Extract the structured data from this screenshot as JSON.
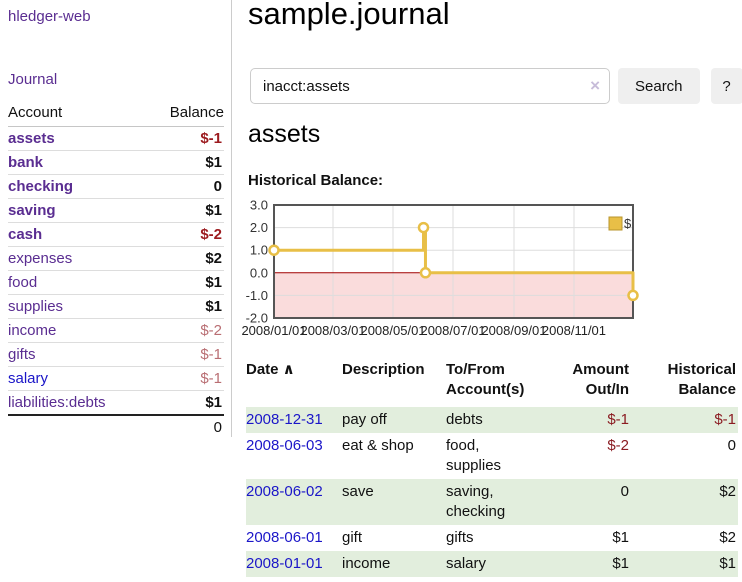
{
  "app": {
    "brand": "hledger-web"
  },
  "sidebar": {
    "journal_label": "Journal",
    "accounts": {
      "account_header": "Account",
      "balance_header": "Balance",
      "rows": [
        {
          "name": "assets",
          "balance": "$-1",
          "depth": 1,
          "bold": true,
          "balance_style": "neg"
        },
        {
          "name": "bank",
          "balance": "$1",
          "depth": 2,
          "bold": true,
          "balance_style": "pos"
        },
        {
          "name": "checking",
          "balance": "0",
          "depth": 3,
          "bold": true,
          "balance_style": "pos"
        },
        {
          "name": "saving",
          "balance": "$1",
          "depth": 3,
          "bold": true,
          "balance_style": "pos"
        },
        {
          "name": "cash",
          "balance": "$-2",
          "depth": 2,
          "bold": true,
          "balance_style": "neg"
        },
        {
          "name": "expenses",
          "balance": "$2",
          "depth": 1,
          "bold": false,
          "balance_style": "pos"
        },
        {
          "name": "food",
          "balance": "$1",
          "depth": 2,
          "bold": false,
          "balance_style": "pos"
        },
        {
          "name": "supplies",
          "balance": "$1",
          "depth": 2,
          "bold": false,
          "balance_style": "pos"
        },
        {
          "name": "income",
          "balance": "$-2",
          "depth": 1,
          "bold": false,
          "balance_style": "softneg"
        },
        {
          "name": "gifts",
          "balance": "$-1",
          "depth": 2,
          "bold": false,
          "balance_style": "softneg"
        },
        {
          "name": "salary",
          "balance": "$-1",
          "depth": 2,
          "bold": false,
          "balance_style": "softneg",
          "link_color": "blue"
        },
        {
          "name": "liabilities:debts",
          "balance": "$1",
          "depth": 1,
          "bold": false,
          "balance_style": "pos"
        }
      ],
      "total": "0"
    }
  },
  "main": {
    "title": "sample.journal",
    "search": {
      "value": "inacct:assets",
      "clear_icon": "×",
      "button_label": "Search",
      "help_label": "?"
    },
    "account_heading": "assets",
    "chart_label": "Historical Balance:"
  },
  "chart_data": {
    "type": "line",
    "step": true,
    "title": "Historical Balance:",
    "legend": "$",
    "legend_position": "top-right",
    "grid": true,
    "ylim": [
      -2.0,
      3.0
    ],
    "y_ticks": [
      "3.0",
      "2.0",
      "1.0",
      "0.0",
      "-1.0",
      "-2.0"
    ],
    "x_ticks": [
      "2008/01/01",
      "2008/03/01",
      "2008/05/01",
      "2008/07/01",
      "2008/09/01",
      "2008/11/01"
    ],
    "series": [
      {
        "name": "$",
        "color": "#e8bf47",
        "points": [
          [
            "2008-01-01",
            1
          ],
          [
            "2008-06-01",
            2
          ],
          [
            "2008-06-03",
            0
          ],
          [
            "2008-12-31",
            -1
          ]
        ]
      }
    ],
    "x_domain": [
      "2008-01-01",
      "2008-12-31"
    ],
    "colors": {
      "negative_region_fill": "#fadcdc",
      "zero_line": "#a00000",
      "gridline": "#dddddd",
      "plot_border": "#555555",
      "marker_fill": "#ffffff"
    }
  },
  "register": {
    "sort_icon": "∧",
    "headers": [
      {
        "lines": [
          "Date"
        ],
        "align": "left",
        "sortable": true
      },
      {
        "lines": [
          "Description"
        ],
        "align": "left"
      },
      {
        "lines": [
          "To/From",
          "Account(s)"
        ],
        "align": "left"
      },
      {
        "lines": [
          "Amount",
          "Out/In"
        ],
        "align": "right"
      },
      {
        "lines": [
          "Historical",
          "Balance"
        ],
        "align": "right"
      }
    ],
    "rows": [
      {
        "date": "2008-12-31",
        "description": "pay off",
        "accounts": [
          "debts"
        ],
        "amount": "$-1",
        "amount_negative": true,
        "balance": "$-1",
        "balance_negative": true,
        "shaded": true
      },
      {
        "date": "2008-06-03",
        "description": "eat & shop",
        "accounts": [
          "food, supplies"
        ],
        "amount": "$-2",
        "amount_negative": true,
        "balance": "0",
        "balance_negative": false,
        "shaded": false
      },
      {
        "date": "2008-06-02",
        "description": "save",
        "accounts": [
          "saving,",
          "checking"
        ],
        "amount": "0",
        "amount_negative": false,
        "balance": "$2",
        "balance_negative": false,
        "shaded": true
      },
      {
        "date": "2008-06-01",
        "description": "gift",
        "accounts": [
          "gifts"
        ],
        "amount": "$1",
        "amount_negative": false,
        "balance": "$2",
        "balance_negative": false,
        "shaded": false
      },
      {
        "date": "2008-01-01",
        "description": "income",
        "accounts": [
          "salary"
        ],
        "amount": "$1",
        "amount_negative": false,
        "balance": "$1",
        "balance_negative": false,
        "shaded": true
      }
    ]
  }
}
